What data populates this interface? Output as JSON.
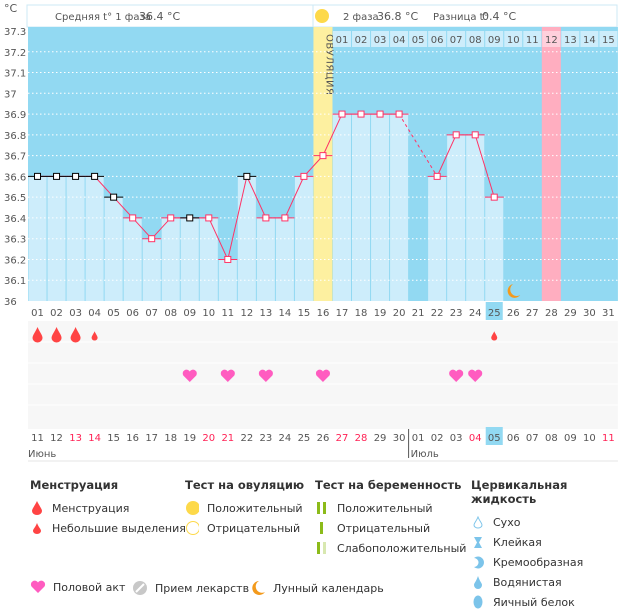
{
  "header": {
    "phase1_label": "Средняя t° 1 фаза",
    "phase1_value": "36.4 °C",
    "phase2_label": "2 фаза",
    "phase2_value": "36.8 °C",
    "diff_label": "Разница t°",
    "diff_value": "0.4 °C",
    "ovulation_label": "ОВУЛЯЦИЯ"
  },
  "chart_data": {
    "type": "line",
    "ylabel": "°C",
    "ylim": [
      36,
      37.3
    ],
    "yticks": [
      "36",
      "36.1",
      "36.2",
      "36.3",
      "36.4",
      "36.5",
      "36.6",
      "36.7",
      "36.8",
      "36.9",
      "37",
      "37.1",
      "37.2",
      "37.3"
    ],
    "cycle_days": [
      "01",
      "02",
      "03",
      "04",
      "05",
      "06",
      "07",
      "08",
      "09",
      "10",
      "11",
      "12",
      "13",
      "14",
      "15",
      "16",
      "17",
      "18",
      "19",
      "20",
      "21",
      "22",
      "23",
      "24",
      "25",
      "26",
      "27",
      "28",
      "29",
      "30",
      "31"
    ],
    "temperatures": [
      36.6,
      36.6,
      36.6,
      36.6,
      36.5,
      36.4,
      36.3,
      36.4,
      36.4,
      36.4,
      36.2,
      36.6,
      36.4,
      36.4,
      36.6,
      36.7,
      36.9,
      36.9,
      36.9,
      36.9,
      null,
      36.6,
      36.8,
      36.8,
      36.5,
      null,
      null,
      null,
      null,
      null,
      null
    ],
    "excluded_points": [
      1,
      2,
      3,
      4,
      5,
      9,
      12
    ],
    "ovulation_day": 16,
    "luteal_days": [
      "01",
      "02",
      "03",
      "04",
      "05",
      "06",
      "07",
      "08",
      "09",
      "10",
      "11",
      "12",
      "13",
      "14",
      "15"
    ],
    "expected_period_day": 28,
    "today_day": 25,
    "moon_day": 26,
    "menstruation": {
      "1": "heavy",
      "2": "heavy",
      "3": "heavy",
      "4": "light",
      "25": "light"
    },
    "intercourse_days": [
      9,
      11,
      13,
      16,
      23,
      24
    ],
    "dates": [
      "11",
      "12",
      "13",
      "14",
      "15",
      "16",
      "17",
      "18",
      "19",
      "20",
      "21",
      "22",
      "23",
      "24",
      "25",
      "26",
      "27",
      "28",
      "29",
      "30",
      "01",
      "02",
      "03",
      "04",
      "05",
      "06",
      "07",
      "08",
      "09",
      "10",
      "11"
    ],
    "weekend_dates_idx": [
      2,
      3,
      9,
      10,
      16,
      17,
      23,
      30
    ],
    "months": [
      "Июнь",
      "Июль"
    ],
    "colors": {
      "bg": "#92d9f2",
      "bar": "#cdedfb",
      "line": "#ff3366",
      "ovulation": "#fdf0a0",
      "period": "#ffaec0",
      "weekend": "#ff2255"
    }
  },
  "legend": {
    "menstruation": {
      "title": "Менструация",
      "items": [
        "Менструация",
        "Небольшие выделения"
      ]
    },
    "ovulation_test": {
      "title": "Тест на овуляцию",
      "items": [
        "Положительный",
        "Отрицательный"
      ]
    },
    "pregnancy_test": {
      "title": "Тест на беременность",
      "items": [
        "Положительный",
        "Отрицательный",
        "Слабоположительный"
      ]
    },
    "cervical": {
      "title": "Цервикальная жидкость",
      "items": [
        "Сухо",
        "Клейкая",
        "Кремообразная",
        "Водянистая",
        "Яичный белок"
      ]
    },
    "bottom": [
      "Половой акт",
      "Прием лекарств",
      "Лунный календарь"
    ]
  }
}
